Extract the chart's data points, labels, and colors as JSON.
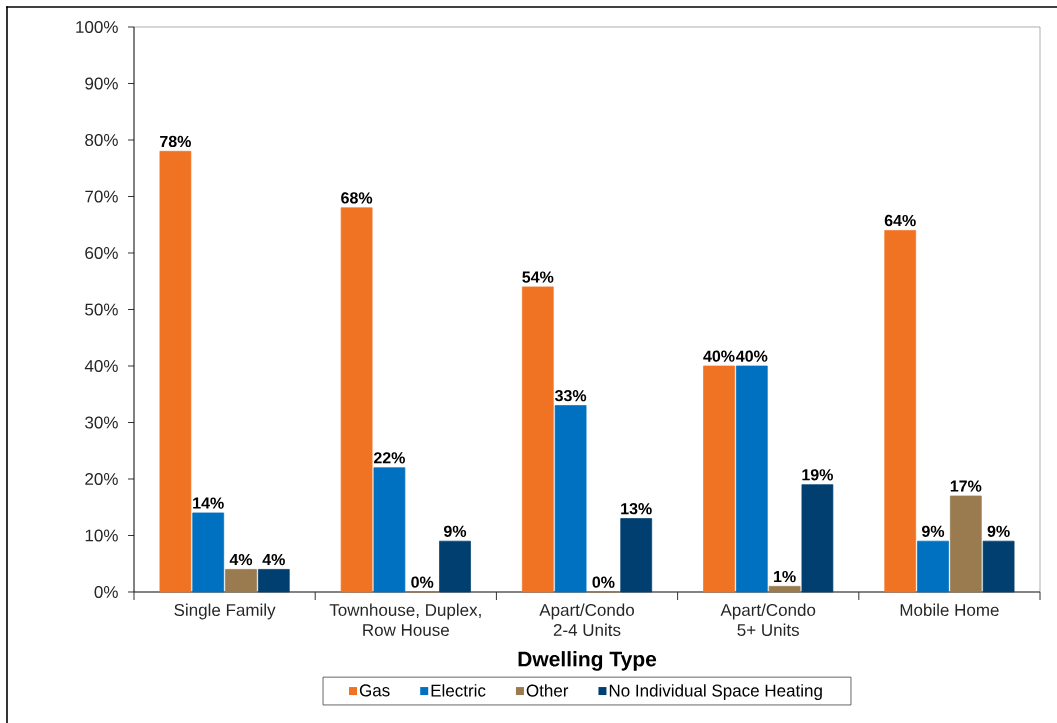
{
  "chart_data": {
    "type": "bar",
    "xlabel": "Dwelling Type",
    "categories": [
      "Single Family",
      "Townhouse, Duplex, Row House",
      "Apart/Condo 2-4 Units",
      "Apart/Condo 5+ Units",
      "Mobile Home"
    ],
    "series": [
      {
        "name": "Gas",
        "color": "#f07323",
        "values": [
          78,
          68,
          54,
          40,
          64
        ],
        "value_labels": [
          "78%",
          "68%",
          "54%",
          "40%",
          "64%"
        ]
      },
      {
        "name": "Electric",
        "color": "#0070c0",
        "values": [
          14,
          22,
          33,
          40,
          9
        ],
        "value_labels": [
          "14%",
          "22%",
          "33%",
          "40%",
          "9%"
        ]
      },
      {
        "name": "Other",
        "color": "#9a7b50",
        "values": [
          4,
          0,
          0,
          1,
          17
        ],
        "value_labels": [
          "4%",
          "0%",
          "0%",
          "1%",
          "17%"
        ]
      },
      {
        "name": "No Individual Space Heating",
        "color": "#003f6f",
        "values": [
          4,
          9,
          13,
          19,
          9
        ],
        "value_labels": [
          "4%",
          "9%",
          "13%",
          "19%",
          "9%"
        ]
      }
    ],
    "ylim": [
      0,
      100
    ],
    "yticks": [
      {
        "value": 0,
        "label": "0%"
      },
      {
        "value": 10,
        "label": "10%"
      },
      {
        "value": 20,
        "label": "20%"
      },
      {
        "value": 30,
        "label": "30%"
      },
      {
        "value": 40,
        "label": "40%"
      },
      {
        "value": 50,
        "label": "50%"
      },
      {
        "value": 60,
        "label": "60%"
      },
      {
        "value": 70,
        "label": "70%"
      },
      {
        "value": 80,
        "label": "80%"
      },
      {
        "value": 90,
        "label": "90%"
      },
      {
        "value": 100,
        "label": "100%"
      }
    ],
    "legend": "bottom"
  }
}
